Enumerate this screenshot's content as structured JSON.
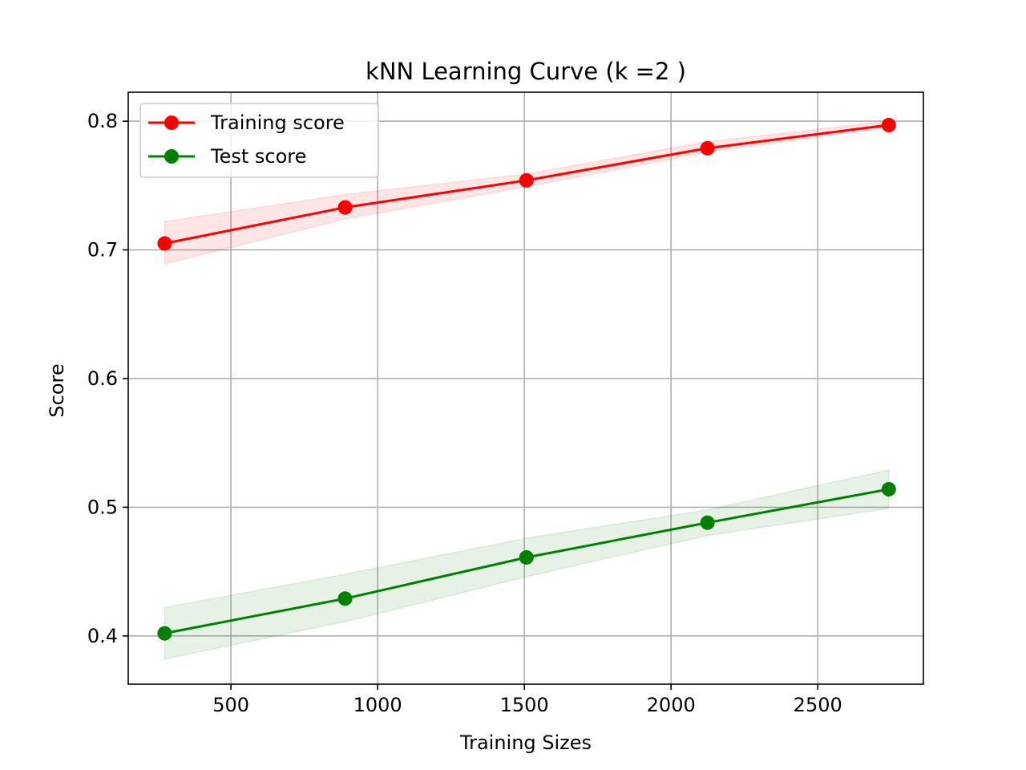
{
  "chart_data": {
    "type": "line",
    "title": "kNN Learning Curve (k =2 )",
    "xlabel": "Training Sizes",
    "ylabel": "Score",
    "xlim": [
      150,
      2860
    ],
    "ylim": [
      0.3625,
      0.8225
    ],
    "xticks": [
      500,
      1000,
      1500,
      2000,
      2500
    ],
    "xtick_labels": [
      "500",
      "1000",
      "1500",
      "2000",
      "2500"
    ],
    "yticks": [
      0.4,
      0.5,
      0.6,
      0.7,
      0.8
    ],
    "ytick_labels": [
      "0.4",
      "0.5",
      "0.6",
      "0.7",
      "0.8"
    ],
    "grid": true,
    "legend_position": "upper-left",
    "x": [
      274,
      889,
      1507,
      2124,
      2742
    ],
    "series": [
      {
        "name": "Training score",
        "color": "#ff0000",
        "values": [
          0.705,
          0.733,
          0.754,
          0.779,
          0.797
        ],
        "lower": [
          0.689,
          0.724,
          0.749,
          0.776,
          0.795
        ],
        "upper": [
          0.722,
          0.743,
          0.759,
          0.784,
          0.8
        ]
      },
      {
        "name": "Test score",
        "color": "#008000",
        "values": [
          0.402,
          0.429,
          0.461,
          0.488,
          0.514
        ],
        "lower": [
          0.382,
          0.411,
          0.446,
          0.478,
          0.499
        ],
        "upper": [
          0.422,
          0.448,
          0.476,
          0.498,
          0.529
        ]
      }
    ]
  }
}
